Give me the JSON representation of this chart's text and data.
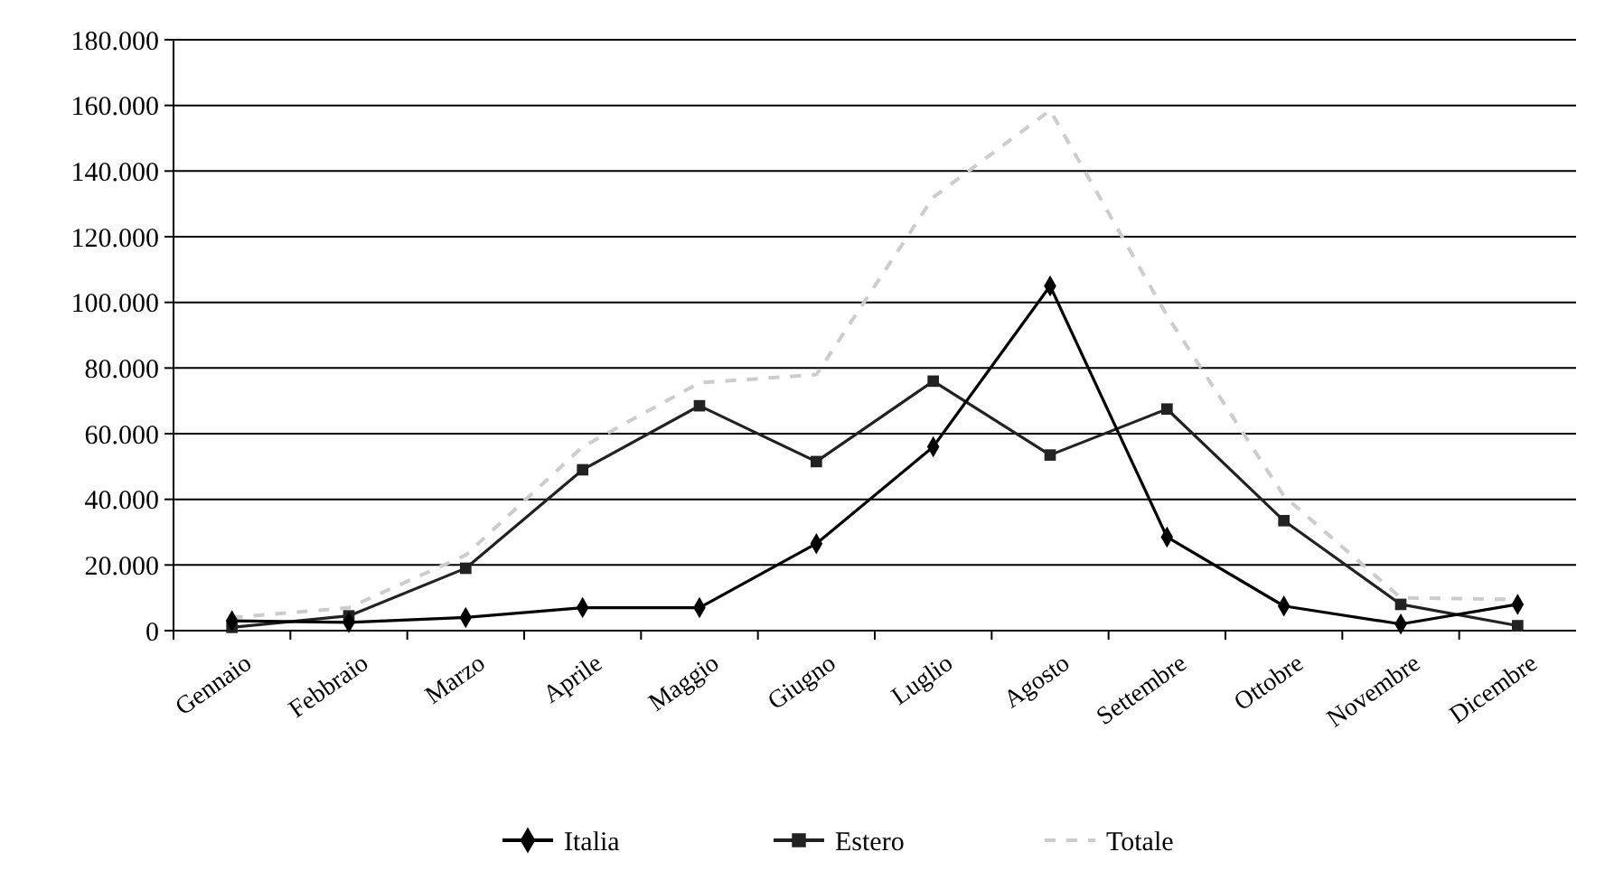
{
  "chart_data": {
    "type": "line",
    "categories": [
      "Gennaio",
      "Febbraio",
      "Marzo",
      "Aprile",
      "Maggio",
      "Giugno",
      "Luglio",
      "Agosto",
      "Settembre",
      "Ottobre",
      "Novembre",
      "Dicembre"
    ],
    "series": [
      {
        "name": "Italia",
        "color": "#000000",
        "marker": "diamond",
        "line_style": "solid",
        "values": [
          3000,
          2500,
          4000,
          7000,
          7000,
          26500,
          56000,
          105000,
          28500,
          7500,
          2000,
          8000
        ]
      },
      {
        "name": "Estero",
        "color": "#222222",
        "marker": "square",
        "line_style": "solid",
        "values": [
          1000,
          4500,
          19000,
          49000,
          68500,
          51500,
          76000,
          53500,
          67500,
          33500,
          8000,
          1500
        ]
      },
      {
        "name": "Totale",
        "color": "#cccccc",
        "marker": "none",
        "line_style": "dashed",
        "values": [
          4000,
          7000,
          23000,
          56000,
          75500,
          78000,
          132000,
          158500,
          96000,
          41000,
          10000,
          9500
        ]
      }
    ],
    "ylim": [
      0,
      180000
    ],
    "yticks": [
      {
        "value": 0,
        "label": "0"
      },
      {
        "value": 20000,
        "label": "20.000"
      },
      {
        "value": 40000,
        "label": "40.000"
      },
      {
        "value": 60000,
        "label": "60.000"
      },
      {
        "value": 80000,
        "label": "80.000"
      },
      {
        "value": 100000,
        "label": "100.000"
      },
      {
        "value": 120000,
        "label": "120.000"
      },
      {
        "value": 140000,
        "label": "140.000"
      },
      {
        "value": 160000,
        "label": "160.000"
      },
      {
        "value": 180000,
        "label": "180.000"
      }
    ],
    "grid": "y",
    "legend": "bottom"
  }
}
